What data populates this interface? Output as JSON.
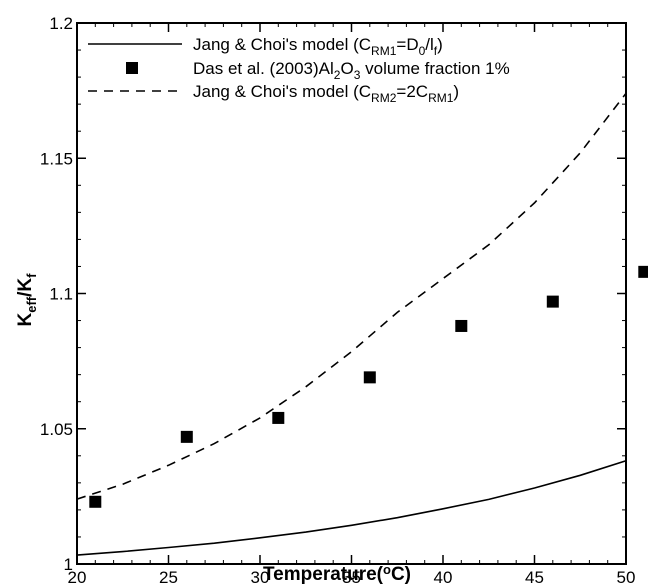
{
  "chart_data": {
    "type": "line",
    "xlabel": "Temperature(°C)",
    "ylabel": "K_eff/K_f",
    "xlim": [
      20,
      50
    ],
    "ylim": [
      1.0,
      1.2
    ],
    "x_ticks": [
      "20",
      "25",
      "30",
      "35",
      "40",
      "45",
      "50"
    ],
    "y_ticks": [
      "1",
      "1.05",
      "1.1",
      "1.15",
      "1.2"
    ],
    "grid": false,
    "legend_position": "top",
    "series": [
      {
        "name": "Jang & Choi's model (C_RM1=D_0/l_f)",
        "style": "solid-line",
        "color": "#000000",
        "x": [
          20,
          22.5,
          25,
          27.5,
          30,
          32.5,
          35,
          37.5,
          40,
          42.5,
          45,
          47.5,
          50
        ],
        "y": [
          1.0033,
          1.0046,
          1.0061,
          1.0077,
          1.0097,
          1.0118,
          1.0143,
          1.0171,
          1.0204,
          1.0239,
          1.0281,
          1.0328,
          1.0382
        ]
      },
      {
        "name": "Das et al. (2003)Al2O3 volume fraction 1%",
        "style": "square-markers",
        "color": "#000000",
        "x": [
          21,
          26,
          31,
          36,
          41,
          46,
          51
        ],
        "y": [
          1.023,
          1.047,
          1.054,
          1.069,
          1.088,
          1.097,
          1.108
        ]
      },
      {
        "name": "Jang & Choi's model (C_RM2=2C_RM1)",
        "style": "dashed-line",
        "color": "#000000",
        "x": [
          20,
          22.5,
          25,
          27.5,
          30,
          32.5,
          35,
          37.5,
          40,
          42.5,
          45,
          47.5,
          50
        ],
        "y": [
          1.024,
          1.0295,
          1.0365,
          1.0445,
          1.054,
          1.0655,
          1.0785,
          1.093,
          1.1055,
          1.118,
          1.1335,
          1.152,
          1.174
        ]
      }
    ]
  }
}
